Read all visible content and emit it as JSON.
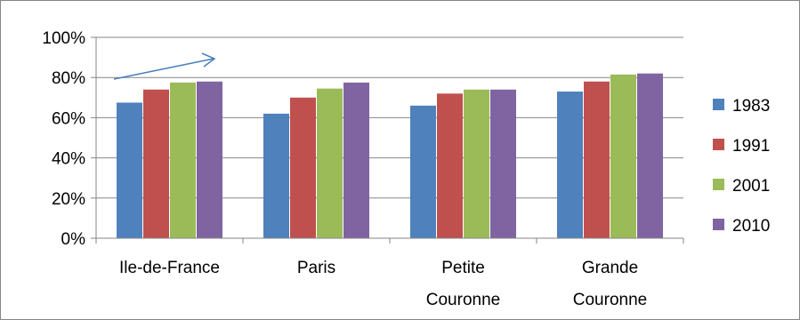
{
  "chart_data": {
    "type": "bar",
    "categories": [
      [
        "Ile-de-France"
      ],
      [
        "Paris"
      ],
      [
        "Petite",
        "Couronne"
      ],
      [
        "Grande",
        "Couronne"
      ]
    ],
    "series": [
      {
        "name": "1983",
        "color": "#4F81BD",
        "values": [
          67.5,
          62,
          66,
          73
        ]
      },
      {
        "name": "1991",
        "color": "#C0504D",
        "values": [
          74,
          70,
          72,
          78
        ]
      },
      {
        "name": "2001",
        "color": "#9BBB59",
        "values": [
          77.5,
          74.5,
          74,
          81.5
        ]
      },
      {
        "name": "2010",
        "color": "#8064A2",
        "values": [
          78,
          77.5,
          74,
          82
        ]
      }
    ],
    "ylim": [
      0,
      100
    ],
    "yticks": [
      "0%",
      "20%",
      "40%",
      "60%",
      "80%",
      "100%"
    ],
    "grid": true,
    "legend": "right",
    "annotation": "arrow"
  }
}
